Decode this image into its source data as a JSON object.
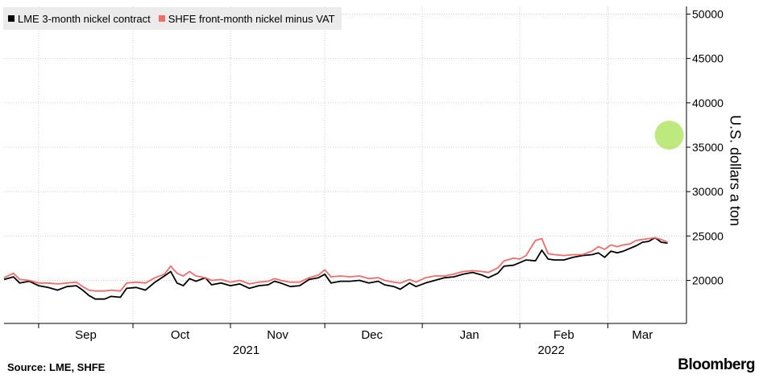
{
  "legend": {
    "lme_label": "LME 3-month nickel contract",
    "shfe_label": "SHFE front-month nickel minus VAT"
  },
  "footer": {
    "source": "Source: LME, SHFE",
    "brand": "Bloomberg"
  },
  "colors": {
    "lme": "#000000",
    "shfe": "#f26c6c",
    "highlight": "#a3e048",
    "grid": "#cfcfcf",
    "legend_bg": "#ebebeb"
  },
  "chart_data": {
    "type": "line",
    "title": "",
    "xlabel": "",
    "ylabel": "U.S. dollars a ton",
    "y_axis_position": "right",
    "ylim": [
      15000,
      51000
    ],
    "yticks": [
      20000,
      25000,
      30000,
      35000,
      40000,
      45000,
      50000
    ],
    "x_range": [
      "2021-08-21",
      "2022-03-26"
    ],
    "month_ticks": [
      "2021-09-01",
      "2021-10-01",
      "2021-11-01",
      "2021-12-01",
      "2022-01-01",
      "2022-02-01",
      "2022-03-01",
      "2022-04-01"
    ],
    "month_labels": [
      {
        "label": "Sep",
        "date": "2021-09-16"
      },
      {
        "label": "Oct",
        "date": "2021-10-16"
      },
      {
        "label": "Nov",
        "date": "2021-11-16"
      },
      {
        "label": "Dec",
        "date": "2021-12-16"
      },
      {
        "label": "Jan",
        "date": "2022-01-16"
      },
      {
        "label": "Feb",
        "date": "2022-02-15"
      },
      {
        "label": "Mar",
        "date": "2022-03-12"
      }
    ],
    "year_labels": [
      {
        "label": "2021",
        "date": "2021-11-06"
      },
      {
        "label": "2022",
        "date": "2022-02-11"
      }
    ],
    "grid": true,
    "legend_position": "top-left",
    "highlight": {
      "date": "2022-03-20",
      "value": 36900
    },
    "series": [
      {
        "name": "LME 3-month nickel contract",
        "color": "#000000",
        "points": [
          [
            "2021-08-21",
            20100
          ],
          [
            "2021-08-24",
            20400
          ],
          [
            "2021-08-26",
            19700
          ],
          [
            "2021-08-29",
            19900
          ],
          [
            "2021-09-01",
            19400
          ],
          [
            "2021-09-04",
            19200
          ],
          [
            "2021-09-07",
            18900
          ],
          [
            "2021-09-10",
            19300
          ],
          [
            "2021-09-13",
            19400
          ],
          [
            "2021-09-15",
            18900
          ],
          [
            "2021-09-17",
            18300
          ],
          [
            "2021-09-19",
            17900
          ],
          [
            "2021-09-22",
            17900
          ],
          [
            "2021-09-24",
            18200
          ],
          [
            "2021-09-27",
            18100
          ],
          [
            "2021-09-29",
            19100
          ],
          [
            "2021-10-02",
            19200
          ],
          [
            "2021-10-05",
            18900
          ],
          [
            "2021-10-08",
            19800
          ],
          [
            "2021-10-11",
            20500
          ],
          [
            "2021-10-13",
            21000
          ],
          [
            "2021-10-15",
            19700
          ],
          [
            "2021-10-17",
            19400
          ],
          [
            "2021-10-19",
            20200
          ],
          [
            "2021-10-21",
            19900
          ],
          [
            "2021-10-24",
            20300
          ],
          [
            "2021-10-26",
            19500
          ],
          [
            "2021-10-29",
            19700
          ],
          [
            "2021-11-01",
            19400
          ],
          [
            "2021-11-04",
            19600
          ],
          [
            "2021-11-07",
            19100
          ],
          [
            "2021-11-10",
            19400
          ],
          [
            "2021-11-13",
            19500
          ],
          [
            "2021-11-15",
            19900
          ],
          [
            "2021-11-17",
            19700
          ],
          [
            "2021-11-20",
            19300
          ],
          [
            "2021-11-23",
            19400
          ],
          [
            "2021-11-26",
            20100
          ],
          [
            "2021-11-29",
            20300
          ],
          [
            "2021-12-01",
            20700
          ],
          [
            "2021-12-03",
            19700
          ],
          [
            "2021-12-06",
            19900
          ],
          [
            "2021-12-09",
            19900
          ],
          [
            "2021-12-12",
            20000
          ],
          [
            "2021-12-15",
            19700
          ],
          [
            "2021-12-18",
            19900
          ],
          [
            "2021-12-20",
            19500
          ],
          [
            "2021-12-23",
            19300
          ],
          [
            "2021-12-25",
            19000
          ],
          [
            "2021-12-28",
            19700
          ],
          [
            "2021-12-30",
            19300
          ],
          [
            "2022-01-02",
            19700
          ],
          [
            "2022-01-05",
            20000
          ],
          [
            "2022-01-08",
            20300
          ],
          [
            "2022-01-11",
            20400
          ],
          [
            "2022-01-14",
            20700
          ],
          [
            "2022-01-17",
            20900
          ],
          [
            "2022-01-20",
            20600
          ],
          [
            "2022-01-22",
            20300
          ],
          [
            "2022-01-25",
            20800
          ],
          [
            "2022-01-27",
            21600
          ],
          [
            "2022-01-30",
            21700
          ],
          [
            "2022-02-01",
            22000
          ],
          [
            "2022-02-03",
            22300
          ],
          [
            "2022-02-06",
            22200
          ],
          [
            "2022-02-08",
            23400
          ],
          [
            "2022-02-10",
            22400
          ],
          [
            "2022-02-12",
            22300
          ],
          [
            "2022-02-15",
            22300
          ],
          [
            "2022-02-18",
            22600
          ],
          [
            "2022-02-21",
            22800
          ],
          [
            "2022-02-24",
            22900
          ],
          [
            "2022-02-26",
            23100
          ],
          [
            "2022-02-28",
            22600
          ],
          [
            "2022-03-02",
            23300
          ],
          [
            "2022-03-04",
            23100
          ],
          [
            "2022-03-06",
            23300
          ],
          [
            "2022-03-08",
            23600
          ],
          [
            "2022-03-10",
            23900
          ],
          [
            "2022-03-12",
            24300
          ],
          [
            "2022-03-14",
            24400
          ],
          [
            "2022-03-16",
            24800
          ],
          [
            "2022-03-18",
            24300
          ],
          [
            "2022-03-20",
            24200
          ]
        ]
      },
      {
        "name": "SHFE front-month nickel minus VAT",
        "color": "#f26c6c",
        "points": [
          [
            "2021-08-21",
            20300
          ],
          [
            "2021-08-24",
            20800
          ],
          [
            "2021-08-26",
            20100
          ],
          [
            "2021-08-29",
            20000
          ],
          [
            "2021-09-01",
            19700
          ],
          [
            "2021-09-04",
            19700
          ],
          [
            "2021-09-07",
            19600
          ],
          [
            "2021-09-10",
            19700
          ],
          [
            "2021-09-13",
            19800
          ],
          [
            "2021-09-15",
            19300
          ],
          [
            "2021-09-17",
            18900
          ],
          [
            "2021-09-19",
            18800
          ],
          [
            "2021-09-22",
            18800
          ],
          [
            "2021-09-24",
            18900
          ],
          [
            "2021-09-27",
            18800
          ],
          [
            "2021-09-29",
            19700
          ],
          [
            "2021-10-02",
            19800
          ],
          [
            "2021-10-05",
            19700
          ],
          [
            "2021-10-08",
            20300
          ],
          [
            "2021-10-11",
            20700
          ],
          [
            "2021-10-13",
            21600
          ],
          [
            "2021-10-15",
            20800
          ],
          [
            "2021-10-17",
            20500
          ],
          [
            "2021-10-19",
            21000
          ],
          [
            "2021-10-21",
            20500
          ],
          [
            "2021-10-24",
            20300
          ],
          [
            "2021-10-26",
            20000
          ],
          [
            "2021-10-29",
            20100
          ],
          [
            "2021-11-01",
            19800
          ],
          [
            "2021-11-04",
            20000
          ],
          [
            "2021-11-07",
            19600
          ],
          [
            "2021-11-10",
            19800
          ],
          [
            "2021-11-13",
            19900
          ],
          [
            "2021-11-15",
            20200
          ],
          [
            "2021-11-17",
            20000
          ],
          [
            "2021-11-20",
            19800
          ],
          [
            "2021-11-23",
            19800
          ],
          [
            "2021-11-26",
            20300
          ],
          [
            "2021-11-29",
            20600
          ],
          [
            "2021-12-01",
            21200
          ],
          [
            "2021-12-03",
            20400
          ],
          [
            "2021-12-06",
            20500
          ],
          [
            "2021-12-09",
            20400
          ],
          [
            "2021-12-12",
            20500
          ],
          [
            "2021-12-15",
            20200
          ],
          [
            "2021-12-18",
            20300
          ],
          [
            "2021-12-20",
            20000
          ],
          [
            "2021-12-23",
            19800
          ],
          [
            "2021-12-25",
            19700
          ],
          [
            "2021-12-28",
            20100
          ],
          [
            "2021-12-30",
            19800
          ],
          [
            "2022-01-02",
            20300
          ],
          [
            "2022-01-05",
            20500
          ],
          [
            "2022-01-08",
            20500
          ],
          [
            "2022-01-11",
            20700
          ],
          [
            "2022-01-14",
            21000
          ],
          [
            "2022-01-17",
            21100
          ],
          [
            "2022-01-20",
            21000
          ],
          [
            "2022-01-22",
            20900
          ],
          [
            "2022-01-25",
            21400
          ],
          [
            "2022-01-27",
            22200
          ],
          [
            "2022-01-30",
            22500
          ],
          [
            "2022-02-01",
            22400
          ],
          [
            "2022-02-03",
            22800
          ],
          [
            "2022-02-06",
            24500
          ],
          [
            "2022-02-08",
            24700
          ],
          [
            "2022-02-10",
            23000
          ],
          [
            "2022-02-12",
            22900
          ],
          [
            "2022-02-15",
            22800
          ],
          [
            "2022-02-18",
            22900
          ],
          [
            "2022-02-21",
            22900
          ],
          [
            "2022-02-24",
            23300
          ],
          [
            "2022-02-26",
            23800
          ],
          [
            "2022-02-28",
            23500
          ],
          [
            "2022-03-02",
            24000
          ],
          [
            "2022-03-04",
            23800
          ],
          [
            "2022-03-06",
            24000
          ],
          [
            "2022-03-08",
            24100
          ],
          [
            "2022-03-10",
            24500
          ],
          [
            "2022-03-12",
            24600
          ],
          [
            "2022-03-14",
            24700
          ],
          [
            "2022-03-16",
            24800
          ],
          [
            "2022-03-18",
            24600
          ],
          [
            "2022-03-20",
            24300
          ]
        ]
      }
    ]
  }
}
